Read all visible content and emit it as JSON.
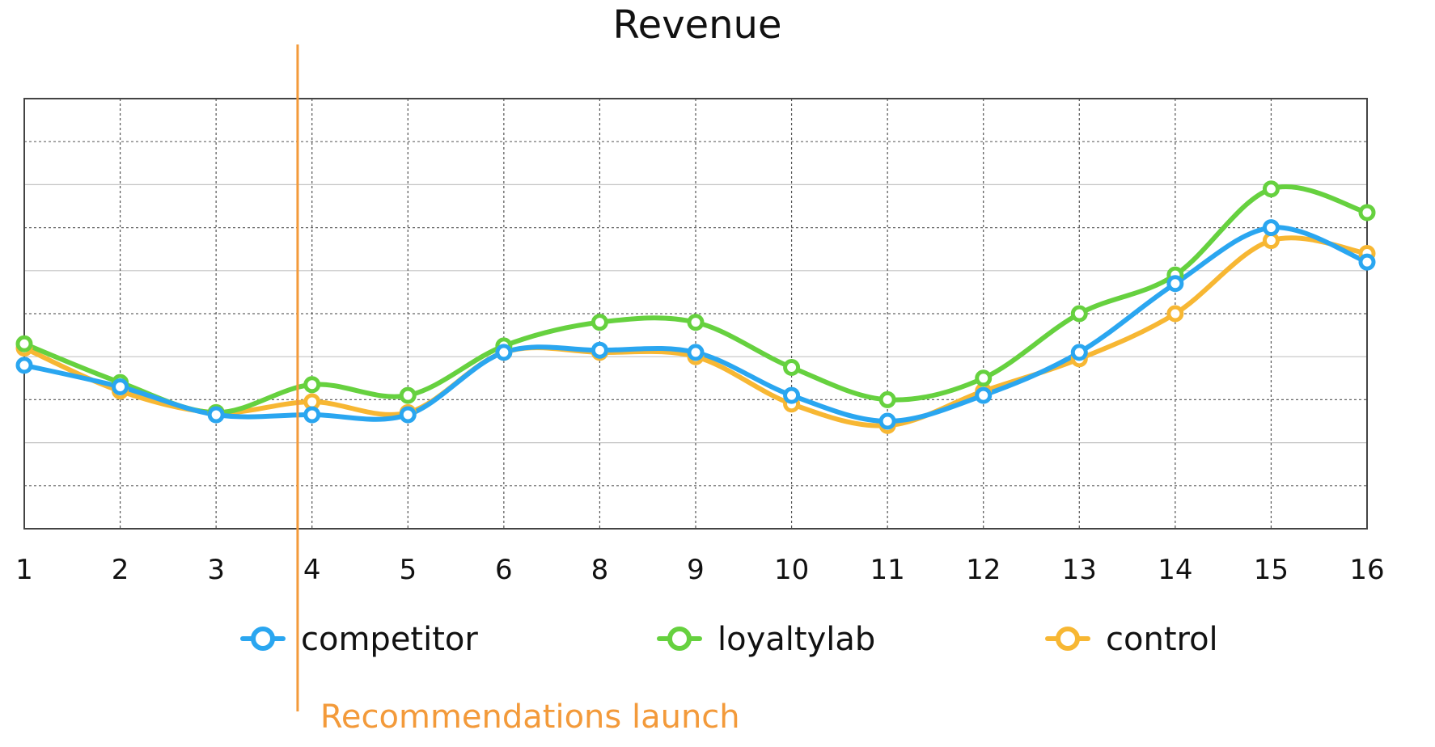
{
  "chart_data": {
    "type": "line",
    "title": "Revenue",
    "xlabel": "",
    "ylabel": "",
    "categories": [
      "1",
      "2",
      "3",
      "4",
      "5",
      "6",
      "8",
      "9",
      "10",
      "11",
      "12",
      "13",
      "14",
      "15",
      "16"
    ],
    "ylim": [
      0,
      10
    ],
    "grid": true,
    "legend": "bottom",
    "series": [
      {
        "name": "competitor",
        "color": "#2aa6f0",
        "values": [
          3.8,
          3.3,
          2.65,
          2.65,
          2.65,
          4.1,
          4.15,
          4.1,
          3.1,
          2.5,
          3.1,
          4.1,
          5.7,
          7.0,
          6.2
        ]
      },
      {
        "name": "loyaltylab",
        "color": "#66d13f",
        "values": [
          4.3,
          3.4,
          2.7,
          3.35,
          3.1,
          4.25,
          4.8,
          4.8,
          3.75,
          3.0,
          3.5,
          5.0,
          5.9,
          7.9,
          7.35
        ]
      },
      {
        "name": "control",
        "color": "#f7b733",
        "values": [
          4.2,
          3.2,
          2.7,
          2.95,
          2.7,
          4.1,
          4.1,
          4.0,
          2.9,
          2.4,
          3.2,
          3.95,
          5.0,
          6.7,
          6.4
        ]
      }
    ],
    "annotations": [
      {
        "type": "vertical-line",
        "x": 2.85,
        "label": "Recommendations launch",
        "color": "#f39a3a"
      }
    ]
  }
}
